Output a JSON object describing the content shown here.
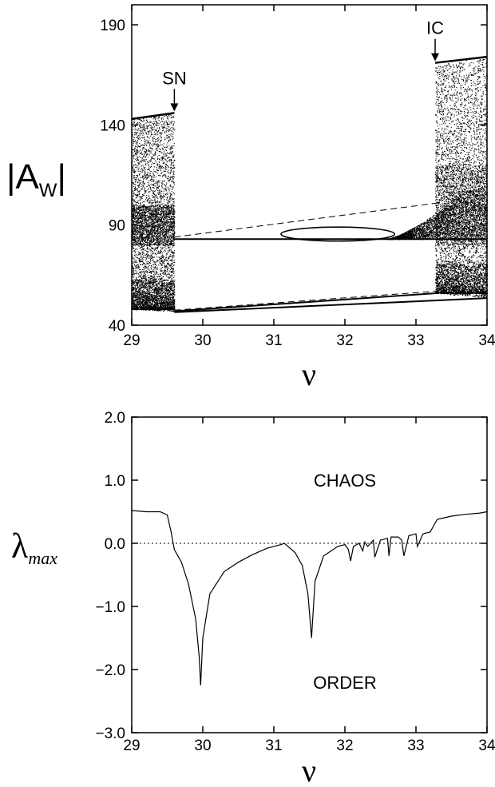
{
  "chart_data": [
    {
      "type": "scatter",
      "title": "",
      "xlabel": "ν",
      "ylabel": "|AW|",
      "ylabel_main": "|A",
      "ylabel_sub": "W",
      "ylabel_end": "|",
      "xlim": [
        29,
        34
      ],
      "ylim": [
        40,
        200
      ],
      "xticks": [
        29,
        30,
        31,
        32,
        33,
        34
      ],
      "yticks": [
        40,
        90,
        140,
        190
      ],
      "grid": false,
      "annotations": [
        {
          "text": "SN",
          "x": 29.6,
          "y": 146
        },
        {
          "text": "IC",
          "x": 33.27,
          "y": 171
        }
      ],
      "regions": [
        {
          "name": "chaotic-left",
          "x": [
            29.0,
            29.6
          ],
          "y_low": [
            48.0,
            47.0
          ],
          "y_high": [
            143.0,
            146.0
          ]
        },
        {
          "name": "chaotic-right",
          "x": [
            33.27,
            34.0
          ],
          "y_low": [
            56.0,
            54.0
          ],
          "y_high": [
            171.0,
            174.0
          ]
        },
        {
          "name": "wedge-right",
          "x": [
            32.6,
            34.0
          ],
          "y_low": [
            83.0,
            83.0
          ],
          "y_high": [
            95.0,
            110.0
          ]
        }
      ],
      "periodic_branches": [
        {
          "x": [
            29.6,
            34.0
          ],
          "y": [
            83.0,
            83.0
          ]
        },
        {
          "x": [
            29.6,
            33.3
          ],
          "y": [
            47.0,
            56.0
          ]
        },
        {
          "x": [
            29.6,
            34.0
          ],
          "y": [
            46.5,
            53.5
          ]
        },
        {
          "x": [
            29.6,
            33.3
          ],
          "y": [
            84.0,
            101.0
          ],
          "style": "dashed"
        },
        {
          "x": [
            29.6,
            33.3
          ],
          "y": [
            47.5,
            57.0
          ],
          "style": "dashed"
        }
      ],
      "bubble": {
        "x": [
          31.1,
          32.7
        ],
        "y_center": 85.5,
        "half_height": 3.5
      }
    },
    {
      "type": "line",
      "title": "",
      "xlabel": "ν",
      "ylabel": "λmax",
      "ylabel_main": "λ",
      "ylabel_sub": "max",
      "xlim": [
        29,
        34
      ],
      "ylim": [
        -3.0,
        2.0
      ],
      "xticks": [
        29,
        30,
        31,
        32,
        33,
        34
      ],
      "yticks": [
        "2.0",
        "1.0",
        "0.0",
        "−1.0",
        "−2.0",
        "−3.0"
      ],
      "ytick_values": [
        2.0,
        1.0,
        0.0,
        -1.0,
        -2.0,
        -3.0
      ],
      "grid": false,
      "reference_line": {
        "y": 0.0,
        "style": "dotted"
      },
      "text_labels": [
        {
          "text": "CHAOS",
          "x": 32.0,
          "y": 1.0
        },
        {
          "text": "ORDER",
          "x": 32.0,
          "y": -2.2
        }
      ],
      "series": [
        {
          "values_note": "lambda_max vs nu",
          "x": [
            29.0,
            29.2,
            29.4,
            29.5,
            29.55,
            29.6,
            29.7,
            29.8,
            29.9,
            29.95,
            29.97,
            30.0,
            30.1,
            30.3,
            30.5,
            30.7,
            30.9,
            31.1,
            31.15,
            31.3,
            31.4,
            31.48,
            31.53,
            31.58,
            31.7,
            31.9,
            32.0,
            32.05,
            32.08,
            32.12,
            32.2,
            32.25,
            32.28,
            32.32,
            32.4,
            32.42,
            32.5,
            32.6,
            32.62,
            32.65,
            32.75,
            32.8,
            32.83,
            32.9,
            33.0,
            33.02,
            33.1,
            33.2,
            33.3,
            33.5,
            33.7,
            33.9,
            34.0
          ],
          "y": [
            0.52,
            0.5,
            0.5,
            0.45,
            0.2,
            -0.1,
            -0.3,
            -0.65,
            -1.2,
            -1.8,
            -2.25,
            -1.5,
            -0.8,
            -0.45,
            -0.3,
            -0.18,
            -0.08,
            -0.02,
            0.0,
            -0.15,
            -0.35,
            -0.8,
            -1.5,
            -0.6,
            -0.2,
            -0.05,
            -0.02,
            -0.1,
            -0.28,
            -0.05,
            0.0,
            -0.12,
            0.02,
            -0.05,
            0.05,
            -0.22,
            0.05,
            0.08,
            -0.2,
            0.1,
            0.1,
            0.05,
            -0.2,
            0.12,
            0.15,
            -0.05,
            0.15,
            0.18,
            0.38,
            0.43,
            0.46,
            0.48,
            0.5
          ]
        }
      ]
    }
  ]
}
